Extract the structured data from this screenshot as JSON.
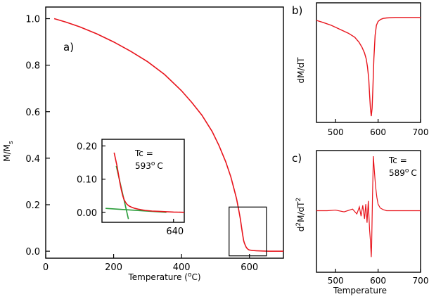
{
  "chart_data": [
    {
      "id": "a",
      "type": "line",
      "panel_label": "a)",
      "xlabel": "Temperature (",
      "xlabel_sup": "o",
      "xlabel_end": "C)",
      "ylabel": "M/M",
      "ylabel_sub": "s",
      "xlim": [
        0,
        700
      ],
      "ylim": [
        -0.03,
        1.05
      ],
      "xticks": [
        0,
        200,
        400,
        600
      ],
      "yticks": [
        0.0,
        0.2,
        0.4,
        0.6,
        0.8,
        1.0
      ],
      "ytick_labels": [
        "0.0",
        "0.2",
        "0.4",
        "0.6",
        "0.8",
        "1.0"
      ],
      "line_color": "#e8141c",
      "series": [
        {
          "x": [
            25,
            60,
            100,
            150,
            200,
            250,
            300,
            350,
            400,
            430,
            460,
            490,
            510,
            530,
            545,
            555,
            562,
            568,
            573,
            577,
            580,
            583,
            585,
            588,
            590,
            593,
            597,
            600,
            610,
            620,
            640,
            660,
            680,
            700
          ],
          "y": [
            1.0,
            0.985,
            0.965,
            0.935,
            0.9,
            0.86,
            0.815,
            0.76,
            0.69,
            0.64,
            0.585,
            0.515,
            0.455,
            0.385,
            0.32,
            0.265,
            0.225,
            0.18,
            0.14,
            0.1,
            0.07,
            0.045,
            0.035,
            0.025,
            0.018,
            0.012,
            0.007,
            0.005,
            0.003,
            0.002,
            0.001,
            0.0,
            0.0,
            0.0
          ]
        }
      ],
      "zoom_box": {
        "x": [
          540,
          650
        ],
        "y": [
          -0.02,
          0.19
        ]
      }
    },
    {
      "id": "a_inset",
      "type": "line",
      "annotation_line1": "Tc =",
      "annotation_line2": "593",
      "annotation_sup": "o",
      "annotation_unit": "C",
      "xlim": [
        540,
        655
      ],
      "ylim": [
        -0.03,
        0.22
      ],
      "xticks": [
        640
      ],
      "yticks": [
        0.0,
        0.1,
        0.2
      ],
      "ytick_labels": [
        "0.00",
        "0.10",
        "0.20"
      ],
      "line_color": "#e8141c",
      "tangent_color": "#2a9d3a",
      "series": [
        {
          "x": [
            557,
            559,
            561,
            563,
            565,
            567,
            569,
            571,
            573,
            575,
            578,
            582,
            586,
            590,
            595,
            600,
            610,
            620,
            640,
            655
          ],
          "y": [
            0.18,
            0.16,
            0.14,
            0.115,
            0.09,
            0.068,
            0.05,
            0.038,
            0.03,
            0.024,
            0.019,
            0.015,
            0.012,
            0.01,
            0.008,
            0.006,
            0.004,
            0.003,
            0.001,
            0.0
          ]
        }
      ],
      "tangents": [
        {
          "x": [
            560,
            577
          ],
          "y": [
            0.14,
            -0.02
          ]
        },
        {
          "x": [
            545,
            630
          ],
          "y": [
            0.012,
            0.0
          ]
        }
      ]
    },
    {
      "id": "b",
      "type": "line",
      "panel_label": "b)",
      "ylabel": "dM/dT",
      "xlim": [
        455,
        700
      ],
      "xticks": [
        500,
        600,
        700
      ],
      "line_color": "#e8141c",
      "series": [
        {
          "x": [
            455,
            470,
            490,
            510,
            530,
            545,
            555,
            562,
            568,
            572,
            575,
            578,
            580,
            582,
            584,
            586,
            588,
            590,
            593,
            596,
            600,
            606,
            612,
            620,
            640,
            660,
            680,
            700
          ],
          "y": [
            -0.03,
            -0.05,
            -0.08,
            -0.12,
            -0.16,
            -0.2,
            -0.25,
            -0.3,
            -0.36,
            -0.42,
            -0.5,
            -0.62,
            -0.78,
            -0.92,
            -1.0,
            -0.92,
            -0.7,
            -0.42,
            -0.18,
            -0.08,
            -0.04,
            -0.02,
            -0.01,
            -0.005,
            0.0,
            0.0,
            0.0,
            0.0
          ]
        }
      ]
    },
    {
      "id": "c",
      "type": "line",
      "panel_label": "c)",
      "ylabel": "d",
      "ylabel_sup1": "2",
      "ylabel_mid": "M/dT",
      "ylabel_sup2": "2",
      "xlabel": "Temperature",
      "annotation_line1": "Tc  =",
      "annotation_line2": "589",
      "annotation_sup": "o",
      "annotation_unit": "C",
      "xlim": [
        455,
        700
      ],
      "xticks": [
        500,
        600,
        700
      ],
      "line_color": "#e8141c",
      "series": [
        {
          "x": [
            455,
            480,
            500,
            520,
            540,
            550,
            556,
            560,
            564,
            568,
            571,
            574,
            577,
            580,
            582,
            584,
            585,
            587,
            589,
            591,
            594,
            597,
            600,
            605,
            612,
            620,
            640,
            660,
            680,
            700
          ],
          "y": [
            0.0,
            0.0,
            0.01,
            -0.02,
            0.03,
            -0.06,
            0.07,
            -0.1,
            0.1,
            -0.15,
            0.12,
            -0.22,
            0.18,
            -0.35,
            -0.55,
            -0.85,
            -0.6,
            0.3,
            1.0,
            0.75,
            0.45,
            0.25,
            0.12,
            0.05,
            0.02,
            0.0,
            0.0,
            0.0,
            0.0,
            0.0
          ]
        }
      ]
    }
  ]
}
